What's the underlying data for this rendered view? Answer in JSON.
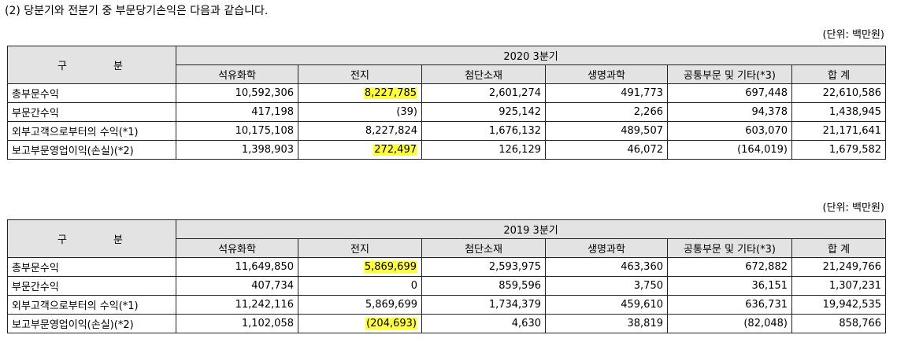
{
  "heading": "(2) 당분기와 전분기 중 부문당기손익은 다음과 같습니다.",
  "tables": [
    {
      "unit": "(단위: 백만원)",
      "gubun": [
        "구",
        "분"
      ],
      "period": "2020 3분기",
      "columns": [
        "석유화학",
        "전지",
        "첨단소재",
        "생명과학",
        "공통부문 및 기타(*3)",
        "합 계"
      ],
      "rows": [
        {
          "label": "총부문수익",
          "values": [
            "10,592,306",
            "8,227,785",
            "2,601,274",
            "491,773",
            "697,448",
            "22,610,586"
          ]
        },
        {
          "label": "부문간수익",
          "values": [
            "417,198",
            "(39)",
            "925,142",
            "2,266",
            "94,378",
            "1,438,945"
          ]
        },
        {
          "label": "외부고객으로부터의 수익(*1)",
          "values": [
            "10,175,108",
            "8,227,824",
            "1,676,132",
            "489,507",
            "603,070",
            "21,171,641"
          ]
        },
        {
          "label": "보고부문영업이익(손실)(*2)",
          "values": [
            "1,398,903",
            "272,497",
            "126,129",
            "46,072",
            "(164,019)",
            "1,679,582"
          ]
        }
      ]
    },
    {
      "unit": "(단위: 백만원)",
      "gubun": [
        "구",
        "분"
      ],
      "period": "2019 3분기",
      "columns": [
        "석유화학",
        "전지",
        "첨단소재",
        "생명과학",
        "공통부문 및 기타(*3)",
        "합 계"
      ],
      "rows": [
        {
          "label": "총부문수익",
          "values": [
            "11,649,850",
            "5,869,699",
            "2,593,975",
            "463,360",
            "672,882",
            "21,249,766"
          ]
        },
        {
          "label": "부문간수익",
          "values": [
            "407,734",
            "0",
            "859,596",
            "3,750",
            "36,151",
            "1,307,231"
          ]
        },
        {
          "label": "외부고객으로부터의 수익(*1)",
          "values": [
            "11,242,116",
            "5,869,699",
            "1,734,379",
            "459,610",
            "636,731",
            "19,942,535"
          ]
        },
        {
          "label": "보고부문영업이익(손실)(*2)",
          "values": [
            "1,102,058",
            "(204,693)",
            "4,630",
            "38,819",
            "(82,048)",
            "858,766"
          ]
        }
      ]
    }
  ],
  "highlight_color": "#ffff3a"
}
